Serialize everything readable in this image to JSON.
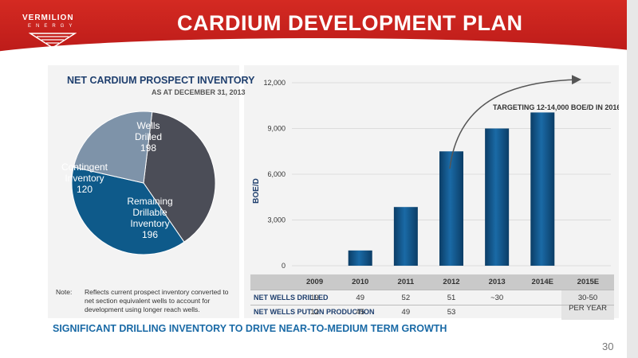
{
  "header": {
    "logo_name": "VERMILION",
    "logo_sub": "ENERGY",
    "title": "CARDIUM DEVELOPMENT PLAN"
  },
  "pie": {
    "title": "NET CARDIUM PROSPECT INVENTORY",
    "subtitle": "AS AT DECEMBER 31, 2013",
    "slices": [
      {
        "label": "Wells Drilled",
        "value": 198,
        "color": "#4b4d57"
      },
      {
        "label": "Remaining Drillable Inventory",
        "value": 196,
        "color": "#0e5a8a"
      },
      {
        "label": "Contingent Inventory",
        "value": 120,
        "color": "#7e93a9"
      }
    ]
  },
  "note": {
    "label": "Note:",
    "text": "Reflects current prospect inventory converted to net section equivalent wells to account for development using longer reach wells."
  },
  "chart_data": {
    "type": "bar",
    "categories": [
      "2009",
      "2010",
      "2011",
      "2012",
      "2013",
      "2014E",
      "2015E"
    ],
    "values": [
      0,
      1000,
      3850,
      7500,
      9000,
      10050,
      null
    ],
    "ylabel": "BOE/D",
    "ylim": [
      0,
      12000
    ],
    "yticks": [
      "0",
      "3,000",
      "6,000",
      "9,000",
      "12,000"
    ],
    "ytick_values": [
      0,
      3000,
      6000,
      9000,
      12000
    ],
    "annotation": "TARGETING 12-14,000 BOE/D IN 2016*",
    "bar_color": "#0f4f80",
    "grid": true
  },
  "table": {
    "rows": [
      {
        "label": "NET WELLS DRILLED",
        "values": [
          "19",
          "49",
          "52",
          "51",
          "~30"
        ]
      },
      {
        "label": "NET WELLS PUT ON PRODUCTION",
        "values": [
          "12",
          "45",
          "49",
          "53",
          ""
        ]
      }
    ],
    "last_col": [
      "30-50",
      "PER YEAR"
    ]
  },
  "footer": {
    "tagline": "SIGNIFICANT DRILLING INVENTORY TO DRIVE NEAR-TO-MEDIUM TERM GROWTH",
    "page": "30"
  },
  "colors": {
    "header_red": "#c8201e",
    "navy": "#1f3f6e",
    "accent_blue": "#1a6aa6"
  }
}
